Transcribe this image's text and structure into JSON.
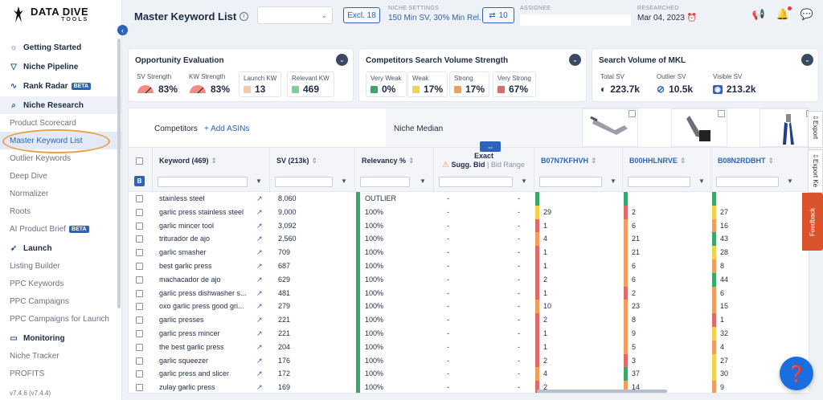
{
  "brand": {
    "name": "DATA DIVE",
    "sub": "TOOLS"
  },
  "sidebar": {
    "items": [
      {
        "type": "head",
        "icon": "lightbulb-icon",
        "label": "Getting Started"
      },
      {
        "type": "head",
        "icon": "funnel-icon",
        "label": "Niche Pipeline"
      },
      {
        "type": "head",
        "icon": "pulse-icon",
        "label": "Rank Radar",
        "badge": "BETA"
      },
      {
        "type": "head",
        "icon": "search-doc-icon",
        "label": "Niche Research",
        "section": true
      },
      {
        "type": "sub",
        "label": "Product Scorecard"
      },
      {
        "type": "sub",
        "label": "Master Keyword List",
        "active": true
      },
      {
        "type": "sub",
        "label": "Outlier Keywords"
      },
      {
        "type": "sub",
        "label": "Deep Dive"
      },
      {
        "type": "sub",
        "label": "Normalizer"
      },
      {
        "type": "sub",
        "label": "Roots"
      },
      {
        "type": "sub",
        "label": "AI Product Brief",
        "badge": "BETA"
      },
      {
        "type": "head",
        "icon": "rocket-icon",
        "label": "Launch"
      },
      {
        "type": "sub",
        "label": "Listing Builder"
      },
      {
        "type": "sub",
        "label": "PPC Keywords"
      },
      {
        "type": "sub",
        "label": "PPC Campaigns"
      },
      {
        "type": "sub",
        "label": "PPC Campaigns for Launch"
      },
      {
        "type": "head",
        "icon": "monitor-icon",
        "label": "Monitoring"
      },
      {
        "type": "sub",
        "label": "Niche Tracker"
      },
      {
        "type": "sub",
        "label": "PROFITS"
      }
    ],
    "version": "v7.4.6 (v7.4.4)"
  },
  "header": {
    "title": "Master Keyword List",
    "excl_label": "Excl. 18",
    "niche_settings_label": "NICHE SETTINGS",
    "niche_settings_value": "150 Min SV, 30% Min Rel.",
    "share_count": "10",
    "assignee_label": "ASSIGNEE",
    "researched_label": "RESEARCHED",
    "researched_value": "Mar 04, 2023"
  },
  "cards": {
    "opportunity": {
      "title": "Opportunity Evaluation",
      "sv_strength_label": "SV Strength",
      "sv_strength": "83%",
      "kw_strength_label": "KW Strength",
      "kw_strength": "83%",
      "launch_kw_label": "Launch KW",
      "launch_kw": "13",
      "relevant_kw_label": "Relevant KW",
      "relevant_kw": "469"
    },
    "competitors": {
      "title": "Competitors Search Volume Strength",
      "very_weak_label": "Very Weak",
      "very_weak": "0%",
      "weak_label": "Weak",
      "weak": "17%",
      "strong_label": "Strong",
      "strong": "17%",
      "very_strong_label": "Very Strong",
      "very_strong": "67%"
    },
    "mkl": {
      "title": "Search Volume of MKL",
      "total_sv_label": "Total SV",
      "total_sv": "223.7k",
      "outlier_sv_label": "Outlier SV",
      "outlier_sv": "10.5k",
      "visible_sv_label": "Visible SV",
      "visible_sv": "213.2k"
    }
  },
  "table": {
    "competitors_label": "Competitors",
    "add_asins_label": "+ Add ASINs",
    "niche_median_label": "Niche Median",
    "columns": {
      "keyword": "Keyword (469)",
      "sv": "SV (213k)",
      "relevancy": "Relevancy %",
      "exact": "Exact",
      "sugg_bid": "Sugg. Bid",
      "bid_range": "Bid Range",
      "asin1": "B07N7KFHVH",
      "asin2": "B00HHLNRVE",
      "asin3": "B08N2RDBHT"
    },
    "badge": "B",
    "rows": [
      {
        "kw": "stainless steel",
        "sv": "8,060",
        "rel": "OUTLIER",
        "bid": "-",
        "range": "-",
        "a1": "",
        "a2": "",
        "a3": ""
      },
      {
        "kw": "garlic press stainless steel",
        "sv": "9,000",
        "rel": "100%",
        "bid": "-",
        "range": "-",
        "a1": "29",
        "a2": "2",
        "a3": "27"
      },
      {
        "kw": "garlic mincer tool",
        "sv": "3,092",
        "rel": "100%",
        "bid": "-",
        "range": "-",
        "a1": "1",
        "a2": "6",
        "a3": "16"
      },
      {
        "kw": "triturador de ajo",
        "sv": "2,560",
        "rel": "100%",
        "bid": "-",
        "range": "-",
        "a1": "4",
        "a2": "21",
        "a3": "43"
      },
      {
        "kw": "garlic smasher",
        "sv": "709",
        "rel": "100%",
        "bid": "-",
        "range": "-",
        "a1": "1",
        "a2": "21",
        "a3": "28"
      },
      {
        "kw": "best garlic press",
        "sv": "687",
        "rel": "100%",
        "bid": "-",
        "range": "-",
        "a1": "1",
        "a2": "6",
        "a3": "8"
      },
      {
        "kw": "machacador de ajo",
        "sv": "629",
        "rel": "100%",
        "bid": "-",
        "range": "-",
        "a1": "2",
        "a2": "6",
        "a3": "44"
      },
      {
        "kw": "garlic press dishwasher s...",
        "sv": "481",
        "rel": "100%",
        "bid": "-",
        "range": "-",
        "a1": "1",
        "a2": "2",
        "a3": "6"
      },
      {
        "kw": "oxo garlic press good gri...",
        "sv": "279",
        "rel": "100%",
        "bid": "-",
        "range": "-",
        "a1": "10",
        "a2": "23",
        "a3": "15"
      },
      {
        "kw": "garlic presses",
        "sv": "221",
        "rel": "100%",
        "bid": "-",
        "range": "-",
        "a1": "2",
        "a2": "8",
        "a3": "1"
      },
      {
        "kw": "garlic press mincer",
        "sv": "221",
        "rel": "100%",
        "bid": "-",
        "range": "-",
        "a1": "1",
        "a2": "9",
        "a3": "32"
      },
      {
        "kw": "the best garlic press",
        "sv": "204",
        "rel": "100%",
        "bid": "-",
        "range": "-",
        "a1": "1",
        "a2": "5",
        "a3": "4"
      },
      {
        "kw": "garlic squeezer",
        "sv": "176",
        "rel": "100%",
        "bid": "-",
        "range": "-",
        "a1": "2",
        "a2": "3",
        "a3": "27"
      },
      {
        "kw": "garlic press and slicer",
        "sv": "172",
        "rel": "100%",
        "bid": "-",
        "range": "-",
        "a1": "4",
        "a2": "37",
        "a3": "30"
      },
      {
        "kw": "zulay garlic press",
        "sv": "169",
        "rel": "100%",
        "bid": "-",
        "range": "-",
        "a1": "2",
        "a2": "14",
        "a3": "9"
      }
    ]
  },
  "right": {
    "export_label_1": "Export",
    "export_label_2": "Export Ke",
    "feedback_label": "Feedback"
  },
  "colors": {
    "accent": "#2d63b8",
    "green": "#3aa76d",
    "yellow": "#f2d24b",
    "orange": "#ef9f5b",
    "red": "#e06a6a",
    "outlier_highlight": "#e8a04a"
  }
}
